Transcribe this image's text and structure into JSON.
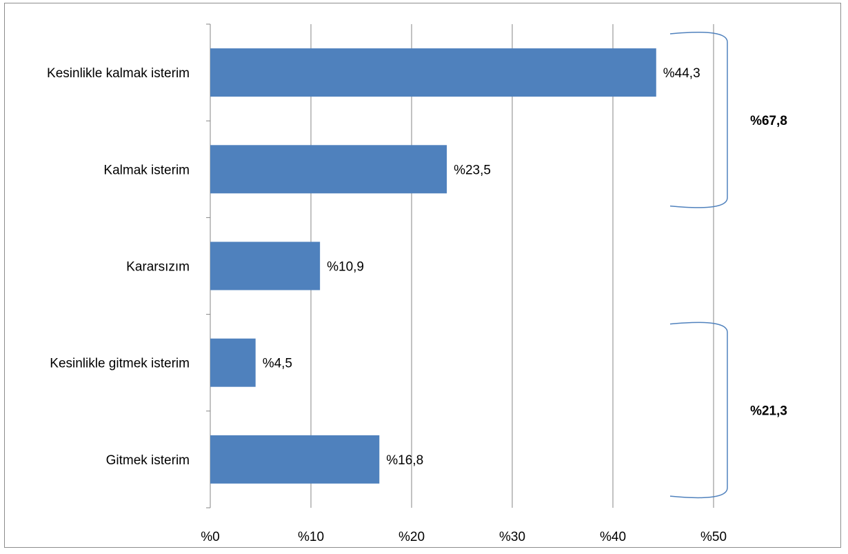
{
  "chart_data": {
    "type": "bar",
    "orientation": "horizontal",
    "categories": [
      "Kesinlikle kalmak  isterim",
      "Kalmak isterim",
      "Kararsızım",
      "Kesinlikle gitmek  isterim",
      "Gitmek isterim"
    ],
    "values": [
      44.3,
      23.5,
      10.9,
      4.5,
      16.8
    ],
    "data_labels": [
      "%44,3",
      "%23,5",
      "%10,9",
      "%4,5",
      "%16,8"
    ],
    "xlim": [
      0,
      50
    ],
    "x_ticks": [
      0,
      10,
      20,
      30,
      40,
      50
    ],
    "x_tick_labels": [
      "%0",
      "%10",
      "%20",
      "%30",
      "%40",
      "%50"
    ],
    "grid": true,
    "bar_color": "#4f81bd",
    "grid_color": "#868686",
    "brace_color": "#4f81bd",
    "group_annotations": [
      {
        "label": "%67,8",
        "categories": [
          "Kesinlikle kalmak  isterim",
          "Kalmak isterim"
        ]
      },
      {
        "label": "%21,3",
        "categories": [
          "Kesinlikle gitmek  isterim",
          "Gitmek isterim"
        ]
      }
    ]
  }
}
